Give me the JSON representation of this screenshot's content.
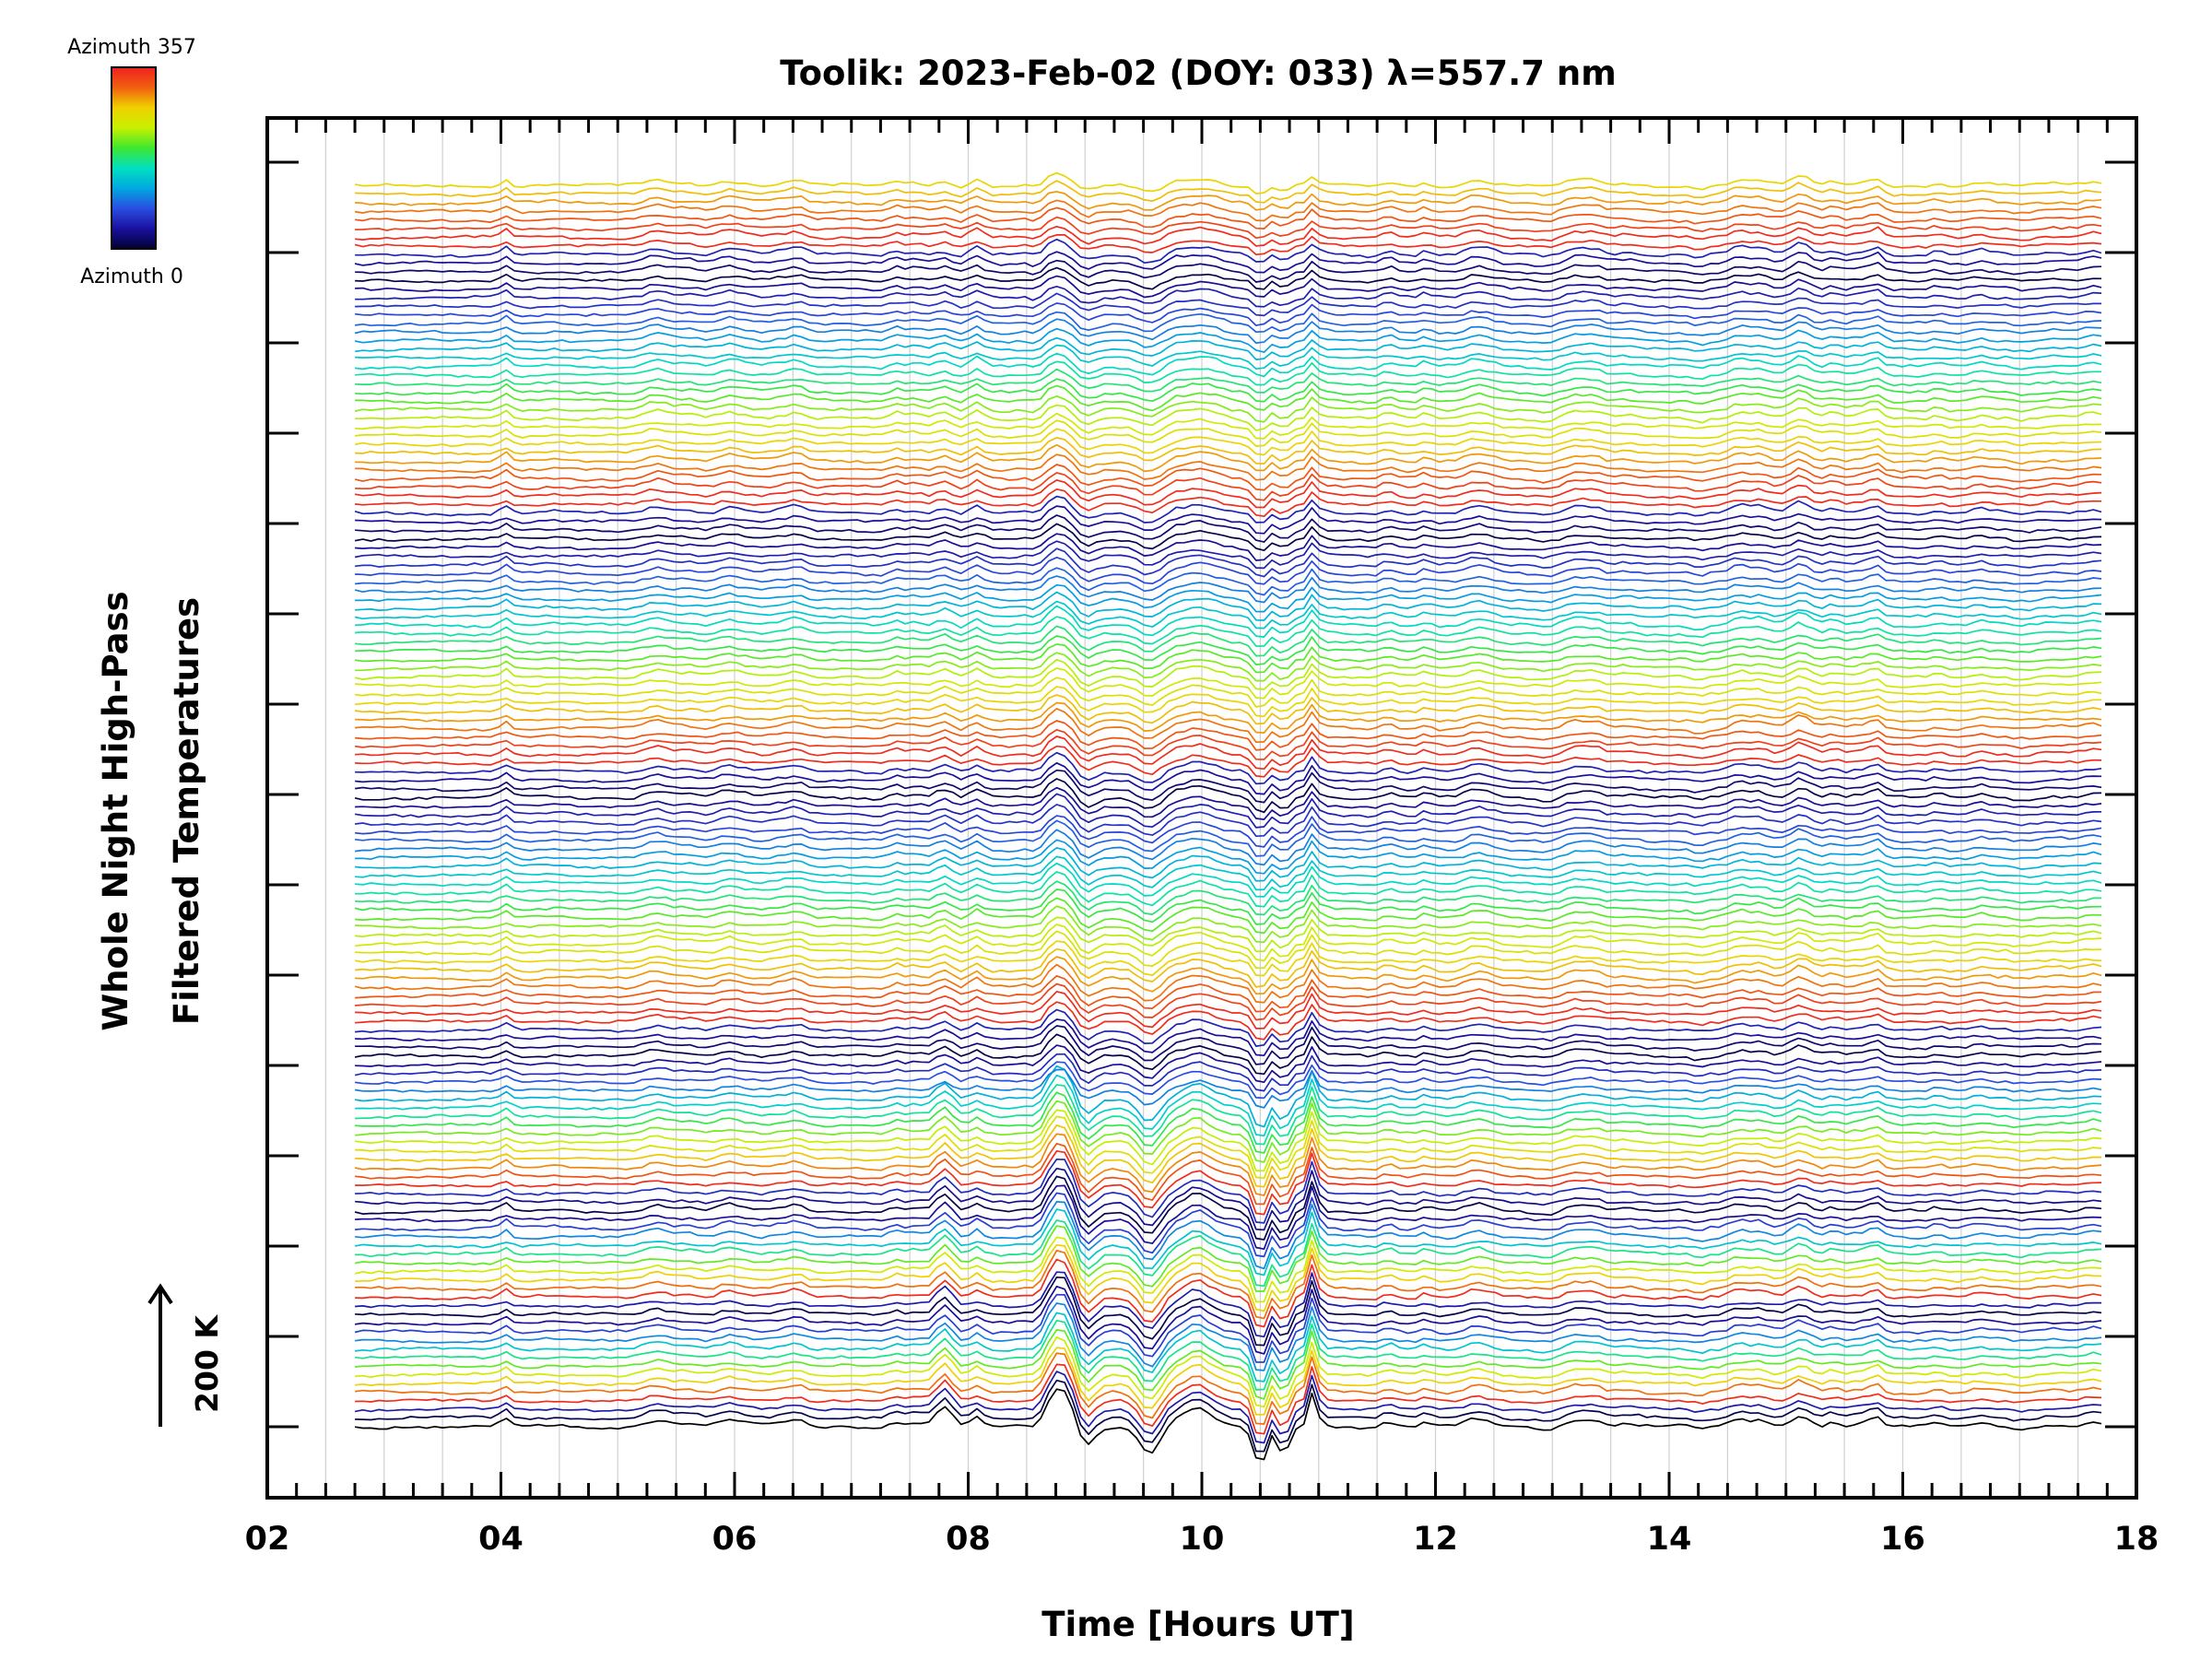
{
  "chart_data": {
    "type": "line",
    "title": "Toolik: 2023-Feb-02 (DOY: 033) λ=557.7 nm",
    "xlabel": "Time [Hours UT]",
    "ylabel_line1": "Whole Night High-Pass",
    "ylabel_line2": "Filtered Temperatures",
    "xlim": [
      2,
      18
    ],
    "x_ticks": [
      "02",
      "04",
      "06",
      "08",
      "10",
      "12",
      "14",
      "16",
      "18"
    ],
    "x_tick_values": [
      2,
      4,
      6,
      8,
      10,
      12,
      14,
      16,
      18
    ],
    "data_x_range": [
      2.75,
      17.7
    ],
    "grid": true,
    "colorbar": {
      "top_label": "Azimuth 357",
      "bottom_label": "Azimuth 0",
      "azimuth_range": [
        0,
        357
      ],
      "colormap": "rainbow",
      "colors": [
        "#000033",
        "#1a10a0",
        "#2a4de0",
        "#00a8e0",
        "#00e0c0",
        "#3ee830",
        "#c8f000",
        "#f0d000",
        "#f06010",
        "#f02020"
      ]
    },
    "scale_bar": {
      "label": "200 K"
    },
    "series_groups": 8,
    "group_sizes": [
      30,
      30,
      30,
      30,
      18,
      12,
      12,
      1
    ],
    "bottom_trace_color": "#000000",
    "disturbance_times": [
      8.8,
      9.5,
      10.5,
      10.7,
      11.0
    ],
    "colors": {
      "axis": "#000000",
      "grid": "#d0d0d0",
      "background": "#ffffff"
    }
  }
}
